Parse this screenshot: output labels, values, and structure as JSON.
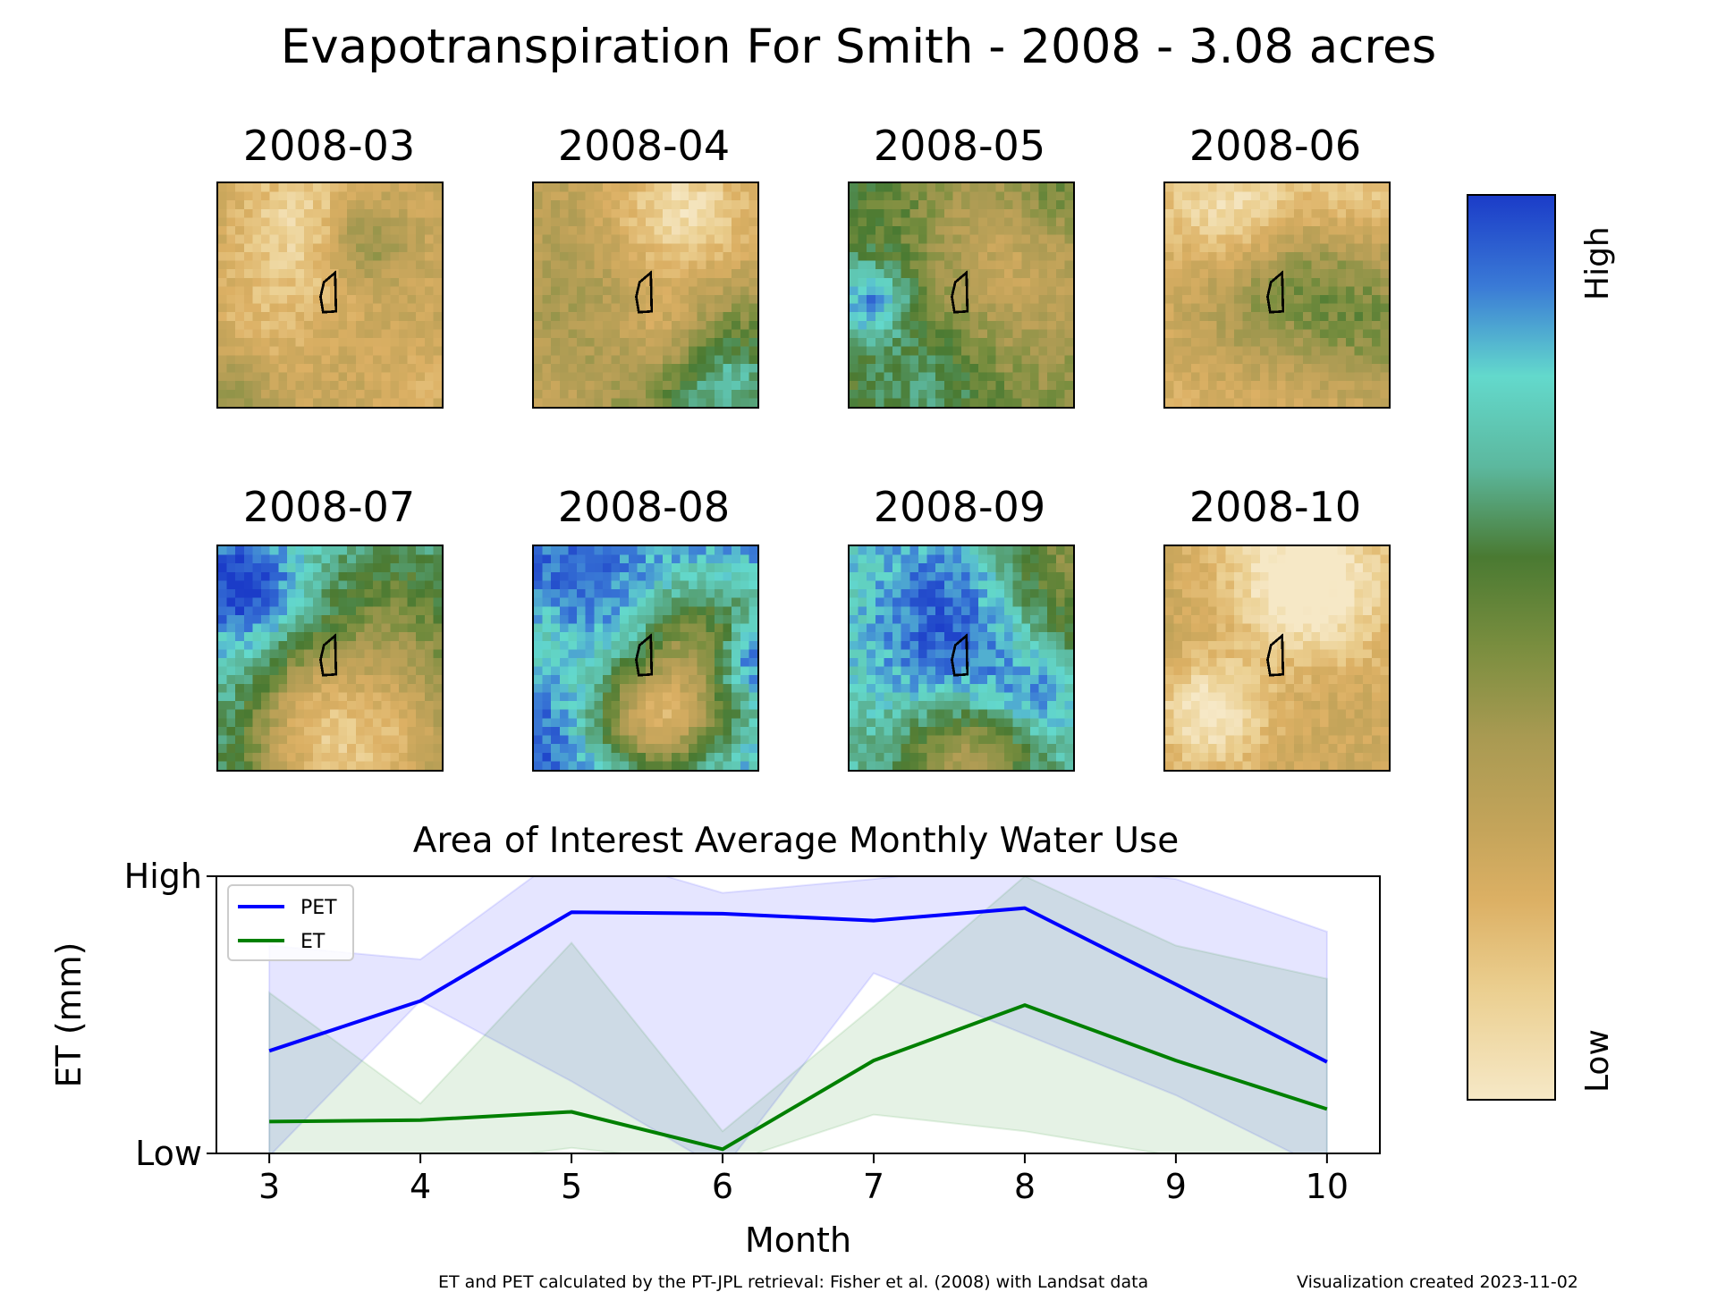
{
  "title": "Evapotranspiration For Smith - 2008 - 3.08 acres",
  "panels": [
    {
      "label": "2008-03",
      "level": 0.3
    },
    {
      "label": "2008-04",
      "level": 0.35
    },
    {
      "label": "2008-05",
      "level": 0.55
    },
    {
      "label": "2008-06",
      "level": 0.2
    },
    {
      "label": "2008-07",
      "level": 0.75
    },
    {
      "label": "2008-08",
      "level": 0.9
    },
    {
      "label": "2008-09",
      "level": 0.75
    },
    {
      "label": "2008-10",
      "level": 0.28
    }
  ],
  "colorbar": {
    "high_label": "High",
    "low_label": "Low"
  },
  "chart_data": {
    "type": "line",
    "title": "Area of Interest Average Monthly Water Use",
    "xlabel": "Month",
    "ylabel": "ET (mm)",
    "x": [
      3,
      4,
      5,
      6,
      7,
      8,
      9,
      10
    ],
    "x_ticks": [
      "3",
      "4",
      "5",
      "6",
      "7",
      "8",
      "9",
      "10"
    ],
    "y_ticks": [
      "Low",
      "High"
    ],
    "xlim": [
      2.65,
      10.35
    ],
    "ylim": [
      0,
      1
    ],
    "legend": "upper-left",
    "series": [
      {
        "name": "PET",
        "color": "#0000ff",
        "values": [
          0.37,
          0.55,
          0.87,
          0.865,
          0.84,
          0.885,
          0.61,
          0.33
        ],
        "upper": [
          0.75,
          0.7,
          1.1,
          0.94,
          0.99,
          1.05,
          0.99,
          0.8
        ],
        "lower": [
          -0.01,
          0.55,
          0.26,
          -0.06,
          0.65,
          0.43,
          0.21,
          -0.06
        ]
      },
      {
        "name": "ET",
        "color": "#008000",
        "values": [
          0.115,
          0.12,
          0.15,
          0.015,
          0.335,
          0.535,
          0.335,
          0.16
        ],
        "upper": [
          0.58,
          0.18,
          0.76,
          0.08,
          0.53,
          1.0,
          0.75,
          0.63
        ],
        "lower": [
          -0.05,
          -0.05,
          0.02,
          -0.04,
          0.14,
          0.08,
          -0.01,
          -0.04
        ]
      }
    ]
  },
  "footer": {
    "source": "ET and PET calculated by the PT-JPL retrieval: Fisher et al. (2008) with Landsat data",
    "created": "Visualization created 2023-11-02"
  }
}
